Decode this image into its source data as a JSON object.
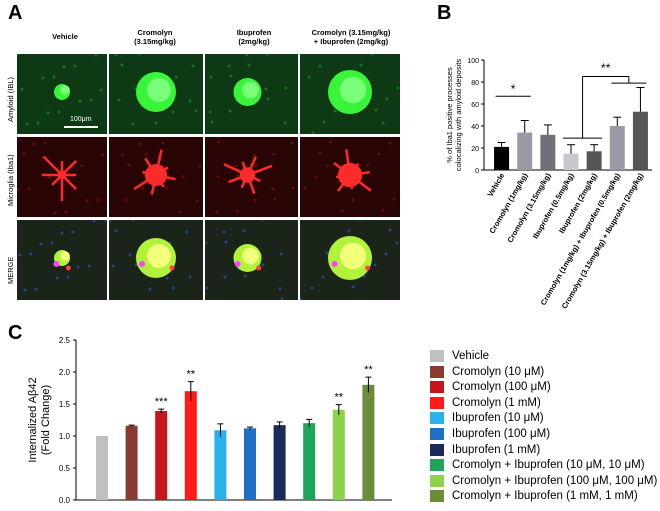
{
  "panels": {
    "a": "A",
    "b": "B",
    "c": "C"
  },
  "panel_a": {
    "columns": [
      "Vehicle",
      "Cromolyn\n(3.15mg/kg)",
      "Ibuprofen\n(2mg/kg)",
      "Cromolyn (3.15mg/kg)\n+ Ibuprofen (2mg/kg)"
    ],
    "rows": [
      "Amyloid (IBL)",
      "Microglia (Iba1)",
      "MERGE"
    ],
    "scale_bar": "100μm"
  },
  "chart_data": [
    {
      "type": "bar",
      "panel": "B",
      "ylabel": "% of Iba1 positive processes\ncolocalizing with amyloid deposits",
      "ylim": [
        0,
        100
      ],
      "yticks": [
        0,
        20,
        40,
        60,
        80,
        100
      ],
      "categories": [
        "Vehicle",
        "Cromolyn (1mg/kg)",
        "Cromolyn (3.15mg/kg)",
        "Ibuprofen (0.5mg/kg)",
        "Ibuprofen (2mg/kg)",
        "Cromolyn (1mg/kg) + Ibuprofen (0.5mg/kg)",
        "Cromolyn (3.15mg/kg) + Ibuprofen (2mg/kg)"
      ],
      "values": [
        21,
        34,
        32,
        15,
        17,
        40,
        53
      ],
      "errors": [
        4,
        11,
        9,
        8,
        6,
        8,
        22
      ],
      "colors": [
        "#000000",
        "#9a9aa6",
        "#707078",
        "#c8c8cc",
        "#555555",
        "#9a9aa6",
        "#555555"
      ],
      "annotations": [
        "*",
        "**"
      ]
    },
    {
      "type": "bar",
      "panel": "C",
      "ylabel": "Internalized Aβ42\n(Fold Change)",
      "ylim": [
        0,
        2.5
      ],
      "yticks": [
        "0.0",
        "0.5",
        "1.0",
        "1.5",
        "2.0",
        "2.5"
      ],
      "categories": [
        "Vehicle",
        "Cromolyn (10 μM)",
        "Cromolyn (100 μM)",
        "Cromolyn (1 mM)",
        "Ibuprofen (10 μM)",
        "Ibuprofen (100 μM)",
        "Ibuprofen (1 mM)",
        "Cromolyn + Ibuprofen (10 μM, 10 μM)",
        "Cromolyn + Ibuprofen (100 μM, 100 μM)",
        "Cromolyn + Ibuprofen (1 mM, 1 mM)"
      ],
      "values": [
        1.0,
        1.16,
        1.39,
        1.7,
        1.09,
        1.12,
        1.17,
        1.2,
        1.41,
        1.8
      ],
      "errors": [
        0,
        0.01,
        0.03,
        0.15,
        0.1,
        0.02,
        0.05,
        0.06,
        0.08,
        0.12
      ],
      "significance": [
        "",
        "",
        "***",
        "**",
        "",
        "",
        "",
        "",
        "**",
        "**"
      ],
      "colors": [
        "#c0c0c0",
        "#8b3a32",
        "#c8141e",
        "#ff1a1a",
        "#29b1ee",
        "#1e6fc4",
        "#1a2a5c",
        "#1fa55a",
        "#8dd24a",
        "#6b8c38"
      ],
      "legend": "right"
    }
  ]
}
